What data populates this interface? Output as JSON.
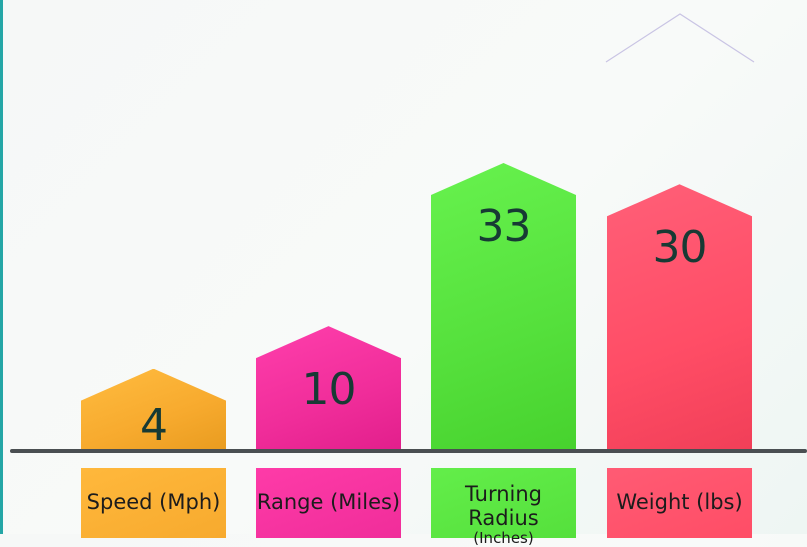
{
  "chart_data": {
    "type": "bar",
    "categories": [
      "Speed (Mph)",
      "Range (Miles)",
      "Turning Radius",
      "Weight (lbs)"
    ],
    "category_sublabels": [
      "",
      "",
      "(Inches)",
      ""
    ],
    "values": [
      4,
      10,
      33,
      30
    ],
    "colors": [
      "#f7aa2e",
      "#f02d9a",
      "#55e03c",
      "#ff4d66"
    ],
    "title": "",
    "xlabel": "",
    "ylabel": "",
    "ylim": [
      0,
      35
    ],
    "grid": false,
    "legend": "none",
    "value_labels": true
  }
}
